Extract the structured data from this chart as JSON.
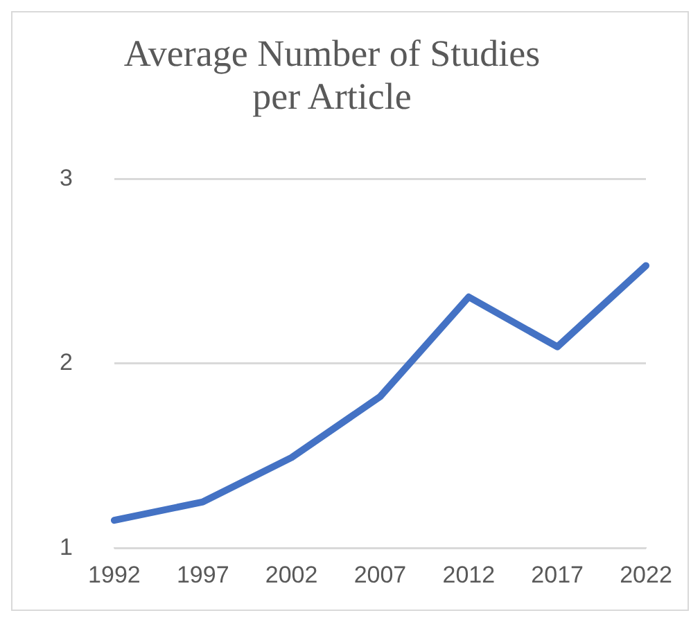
{
  "chart_data": {
    "type": "line",
    "title": "Average Number of Studies per Article",
    "categories": [
      "1992",
      "1997",
      "2002",
      "2007",
      "2012",
      "2017",
      "2022"
    ],
    "series": [
      {
        "color": "#4472c4",
        "values": [
          1.15,
          1.25,
          1.49,
          1.82,
          2.36,
          2.09,
          2.53
        ]
      }
    ],
    "ylim": [
      1,
      3
    ],
    "yticks": [
      1,
      2,
      3
    ],
    "grid": "y",
    "legend": false,
    "marker": "none",
    "line_style": "solid"
  }
}
